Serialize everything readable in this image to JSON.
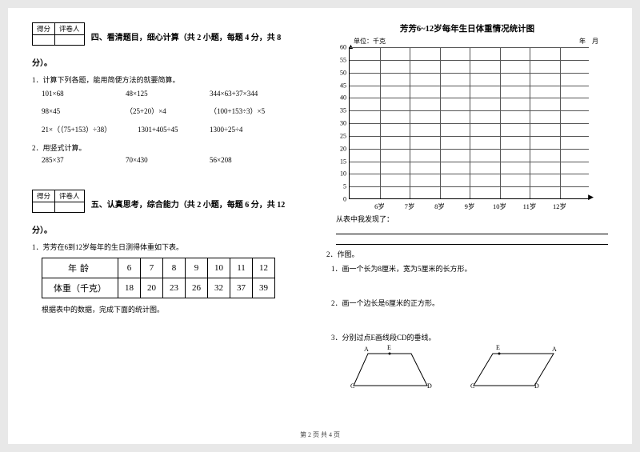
{
  "scorebox": {
    "h1": "得分",
    "h2": "评卷人"
  },
  "section4": {
    "title": "四、看清题目，细心计算（共 2 小题，每题 4 分，共 8",
    "title2": "分）。",
    "q1": "1．计算下列各题，能用简便方法的就要简算。",
    "row1": [
      "101×68",
      "48×125",
      "344×63+37×344"
    ],
    "row2": [
      "98×45",
      "（25+20）×4",
      "（100+153÷3）×5"
    ],
    "row3": [
      "21×（（75+153）÷38）",
      "1301+405÷45",
      "1300÷25÷4"
    ],
    "q2": "2．用竖式计算。",
    "row4": [
      "285×37",
      "70×430",
      "56×208"
    ]
  },
  "section5": {
    "title": "五、认真思考，综合能力（共 2 小题，每题 6 分，共 12",
    "title2": "分）。",
    "q1": "1．芳芳在6到12岁每年的生日测得体重如下表。",
    "table_h1": "年龄",
    "table_h2": "体重（千克）",
    "ages": [
      "6",
      "7",
      "8",
      "9",
      "10",
      "11",
      "12"
    ],
    "weights": [
      "18",
      "20",
      "23",
      "26",
      "32",
      "37",
      "39"
    ],
    "note": "根据表中的数据，完成下面的统计图。"
  },
  "chart": {
    "title": "芳芳6~12岁每年生日体重情况统计图",
    "unit": "单位：千克",
    "ym": "年　月",
    "yticks": [
      "60",
      "55",
      "50",
      "45",
      "40",
      "35",
      "30",
      "25",
      "20",
      "15",
      "10",
      "5",
      "0"
    ],
    "xticks": [
      "6岁",
      "7岁",
      "8岁",
      "9岁",
      "10岁",
      "11岁",
      "12岁"
    ],
    "found": "从表中我发现了："
  },
  "drawing": {
    "q2": "2．作图。",
    "d1": "1．画一个长为8厘米，宽为5厘米的长方形。",
    "d2": "2．画一个边长是6厘米的正方形。",
    "d3": "3．分别过点E画线段CD的垂线。",
    "A": "A",
    "C": "C",
    "D": "D",
    "E": "E"
  },
  "footer": "第 2 页 共 4 页"
}
